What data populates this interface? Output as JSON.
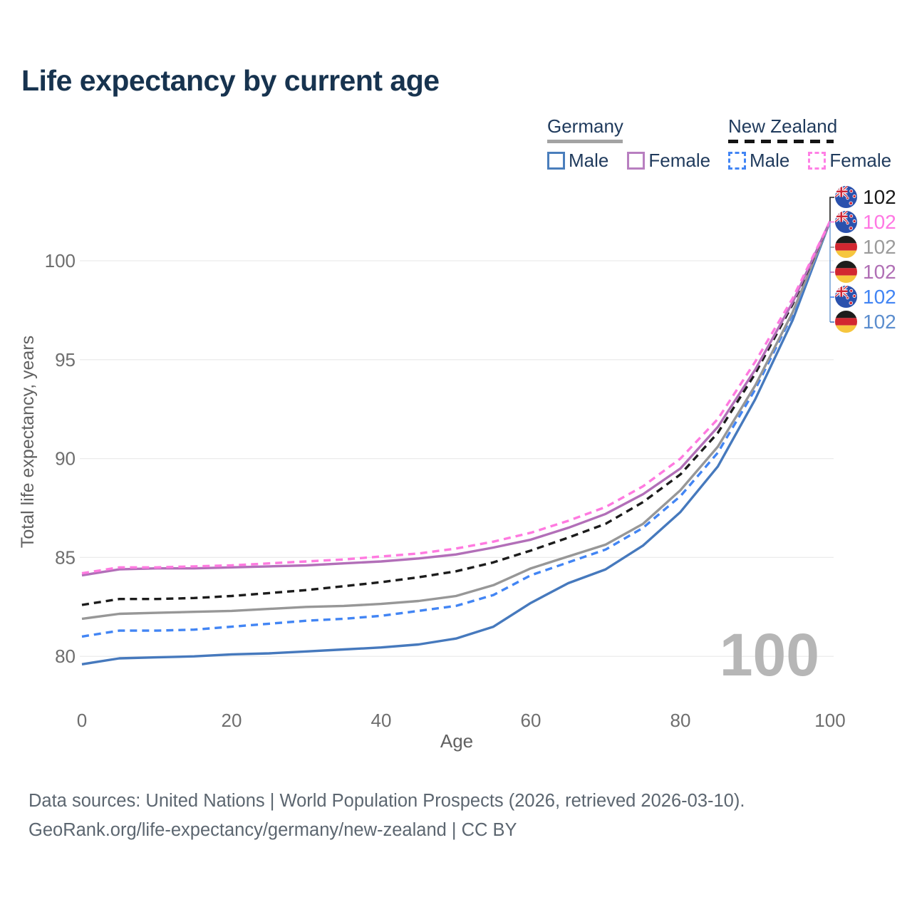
{
  "title": "Life expectancy by current age",
  "legend": {
    "groups": [
      {
        "label": "Germany",
        "underline_style": "solid",
        "underline_color": "#a3a3a3",
        "underline_width": 106,
        "items": [
          {
            "label": "Male",
            "color": "#4a7ebc",
            "dashed": false
          },
          {
            "label": "Female",
            "color": "#b87fc0",
            "dashed": false
          }
        ]
      },
      {
        "label": "New Zealand",
        "underline_style": "dashed",
        "underline_color": "#141414",
        "underline_width": 148,
        "items": [
          {
            "label": "Male",
            "color": "#4285f4",
            "dashed": true
          },
          {
            "label": "Female",
            "color": "#ff80e5",
            "dashed": true
          }
        ]
      }
    ]
  },
  "watermark": "100",
  "end_labels": [
    {
      "value": "102",
      "flag": "nz",
      "color": "#1a1a1a"
    },
    {
      "value": "102",
      "flag": "nz",
      "color": "#ff77e3"
    },
    {
      "value": "102",
      "flag": "de",
      "color": "#9b9b9b"
    },
    {
      "value": "102",
      "flag": "de",
      "color": "#b06fb5"
    },
    {
      "value": "102",
      "flag": "nz",
      "color": "#4285f4"
    },
    {
      "value": "102",
      "flag": "de",
      "color": "#5b8dce"
    }
  ],
  "source": {
    "line1": "Data sources: United Nations | World Population Prospects (2026, retrieved 2026-03-10).",
    "line2": "GeoRank.org/life-expectancy/germany/new-zealand | CC BY"
  },
  "chart_data": {
    "type": "line",
    "title": "Life expectancy by current age",
    "xlabel": "Age",
    "ylabel": "Total life expectancy, years",
    "x_ticks": [
      0,
      20,
      40,
      60,
      80,
      100
    ],
    "y_ticks": [
      80,
      85,
      90,
      95,
      100
    ],
    "xlim": [
      0,
      100
    ],
    "ylim": [
      78.5,
      103.6
    ],
    "grid": "horizontal",
    "legend_position": "top-right",
    "x": [
      0,
      5,
      10,
      15,
      20,
      25,
      30,
      35,
      40,
      45,
      50,
      55,
      60,
      65,
      70,
      75,
      80,
      85,
      90,
      95,
      100
    ],
    "series": [
      {
        "name": "Germany Male",
        "color": "#4679bd",
        "dashed": false,
        "values": [
          79.6,
          79.9,
          79.95,
          80.0,
          80.1,
          80.15,
          80.25,
          80.35,
          80.45,
          80.6,
          80.9,
          81.5,
          82.7,
          83.7,
          84.4,
          85.6,
          87.3,
          89.6,
          93.0,
          97.0,
          102
        ]
      },
      {
        "name": "New Zealand Male",
        "color": "#4285f4",
        "dashed": true,
        "values": [
          81.0,
          81.3,
          81.3,
          81.35,
          81.5,
          81.65,
          81.8,
          81.9,
          82.05,
          82.3,
          82.55,
          83.1,
          84.1,
          84.75,
          85.4,
          86.5,
          88.1,
          90.3,
          93.5,
          97.3,
          102
        ]
      },
      {
        "name": "Germany",
        "color": "#979797",
        "dashed": false,
        "values": [
          81.9,
          82.15,
          82.2,
          82.25,
          82.3,
          82.4,
          82.5,
          82.55,
          82.65,
          82.8,
          83.05,
          83.6,
          84.45,
          85.05,
          85.65,
          86.7,
          88.4,
          90.6,
          93.7,
          97.4,
          102
        ]
      },
      {
        "name": "New Zealand",
        "color": "#1c1c1c",
        "dashed": true,
        "values": [
          82.6,
          82.9,
          82.9,
          82.95,
          83.05,
          83.2,
          83.35,
          83.55,
          83.75,
          84.0,
          84.3,
          84.75,
          85.35,
          86.0,
          86.7,
          87.8,
          89.2,
          91.3,
          94.3,
          97.8,
          102
        ]
      },
      {
        "name": "Germany Female",
        "color": "#b26fb8",
        "dashed": false,
        "values": [
          84.1,
          84.4,
          84.45,
          84.45,
          84.5,
          84.55,
          84.6,
          84.7,
          84.8,
          84.95,
          85.15,
          85.5,
          85.9,
          86.5,
          87.2,
          88.2,
          89.5,
          91.6,
          94.5,
          97.9,
          102
        ]
      },
      {
        "name": "New Zealand Female",
        "color": "#ff7ae0",
        "dashed": true,
        "values": [
          84.2,
          84.5,
          84.5,
          84.55,
          84.6,
          84.7,
          84.8,
          84.9,
          85.05,
          85.2,
          85.45,
          85.8,
          86.25,
          86.85,
          87.55,
          88.6,
          90.0,
          92.0,
          94.9,
          98.1,
          102
        ]
      }
    ],
    "end_value_label": "102"
  }
}
